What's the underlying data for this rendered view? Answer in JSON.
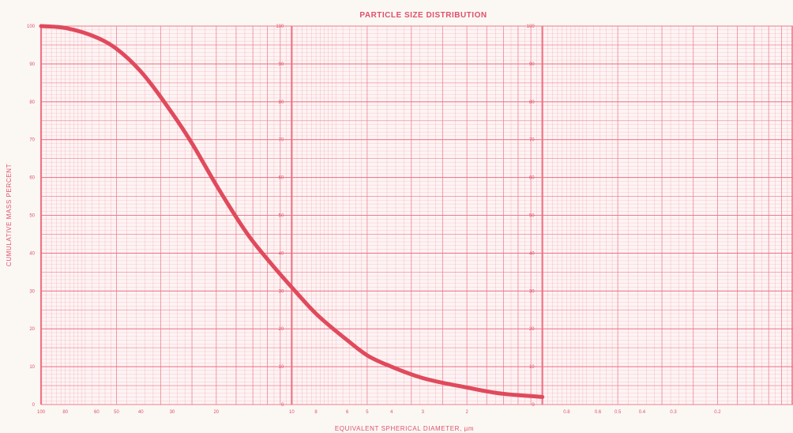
{
  "chart_data": {
    "type": "line",
    "title": "PARTICLE SIZE DISTRIBUTION",
    "xlabel": "EQUIVALENT SPHERICAL DIAMETER, µm",
    "ylabel": "CUMULATIVE MASS PERCENT",
    "x_scale": "log",
    "x_direction": "decreasing",
    "xlim": [
      100,
      0.1
    ],
    "ylim": [
      0,
      100
    ],
    "grid": true,
    "x_ticks": [
      {
        "value": 100,
        "label": "100"
      },
      {
        "value": 80,
        "label": "80"
      },
      {
        "value": 60,
        "label": "60"
      },
      {
        "value": 50,
        "label": "50"
      },
      {
        "value": 40,
        "label": "40"
      },
      {
        "value": 30,
        "label": "30"
      },
      {
        "value": 20,
        "label": "20"
      },
      {
        "value": 10,
        "label": "10"
      },
      {
        "value": 8,
        "label": "8"
      },
      {
        "value": 6,
        "label": "6"
      },
      {
        "value": 5,
        "label": "5"
      },
      {
        "value": 4,
        "label": "4"
      },
      {
        "value": 3,
        "label": "3"
      },
      {
        "value": 2,
        "label": "2"
      },
      {
        "value": 0.8,
        "label": "0.8"
      },
      {
        "value": 0.6,
        "label": "0.6"
      },
      {
        "value": 0.5,
        "label": "0.5"
      },
      {
        "value": 0.4,
        "label": "0.4"
      },
      {
        "value": 0.3,
        "label": "0.3"
      },
      {
        "value": 0.2,
        "label": "0.2"
      }
    ],
    "y_ticks": [
      0,
      10,
      20,
      30,
      40,
      50,
      60,
      70,
      80,
      90,
      100
    ],
    "series": [
      {
        "color": "#e04a5c",
        "x": [
          100,
          80,
          60,
          50,
          40,
          30,
          25,
          20,
          15,
          12,
          10,
          8,
          6,
          5,
          4,
          3,
          2,
          1.5,
          1
        ],
        "y": [
          100,
          99.5,
          97,
          94,
          88,
          77,
          69,
          58,
          45,
          37,
          31,
          24,
          17,
          13,
          10,
          7,
          4.5,
          3,
          2
        ]
      }
    ]
  },
  "colors": {
    "grid": "#ee6f82",
    "curve": "#e04a5c",
    "paper": "#fbf8f4"
  }
}
